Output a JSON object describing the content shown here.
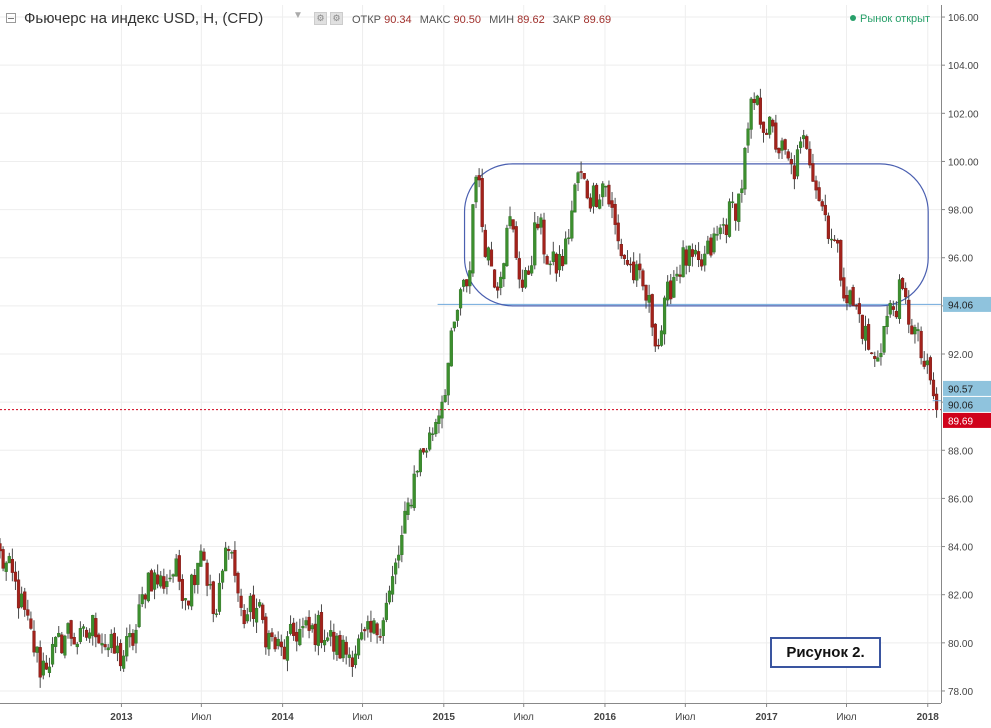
{
  "header": {
    "title": "Фьючерс на индекс USD, Н, (CFD)",
    "open_label": "ОТКР",
    "open_value": "90.34",
    "high_label": "МАКС",
    "high_value": "90.50",
    "low_label": "МИН",
    "low_value": "89.62",
    "close_label": "ЗАКР",
    "close_value": "89.69",
    "market_status": "Рынок открыт"
  },
  "figure_label": "Рисунок 2.",
  "colors": {
    "up": "#3c8f2e",
    "down": "#a3221b",
    "wick": "#4a4a4a",
    "grid": "#eeeeee",
    "channel": "#4a5fb0",
    "level_line": "#6fa8dc",
    "price_line": "#d0021b",
    "badge_blue": "#8fc3dd",
    "badge_red": "#d0021b",
    "market": "#28a06a"
  },
  "chart_data": {
    "type": "candlestick",
    "title": "Фьючерс на индекс USD, Н, (CFD)",
    "y_range": [
      77.5,
      106.5
    ],
    "y_ticks": [
      "78.00",
      "80.00",
      "82.00",
      "84.00",
      "86.00",
      "88.00",
      "90.00",
      "92.00",
      "94.00",
      "96.00",
      "98.00",
      "100.00",
      "102.00",
      "104.00",
      "106.00"
    ],
    "x_range": [
      "2012-04-01",
      "2018-01-31"
    ],
    "x_ticks": [
      {
        "date": "2013-01-01",
        "label": "2013"
      },
      {
        "date": "2013-07-01",
        "label": "Июл"
      },
      {
        "date": "2014-01-01",
        "label": "2014"
      },
      {
        "date": "2014-07-01",
        "label": "Июл"
      },
      {
        "date": "2015-01-01",
        "label": "2015"
      },
      {
        "date": "2015-07-01",
        "label": "Июл"
      },
      {
        "date": "2016-01-01",
        "label": "2016"
      },
      {
        "date": "2016-07-01",
        "label": "Июл"
      },
      {
        "date": "2017-01-01",
        "label": "2017"
      },
      {
        "date": "2017-07-01",
        "label": "Июл"
      },
      {
        "date": "2018-01-01",
        "label": "2018"
      }
    ],
    "path": [
      [
        "2012-04-01",
        83.6
      ],
      [
        "2012-05-01",
        82.6
      ],
      [
        "2012-06-01",
        80.8
      ],
      [
        "2012-07-01",
        79.0
      ],
      [
        "2012-08-01",
        79.6
      ],
      [
        "2012-09-01",
        80.5
      ],
      [
        "2012-10-01",
        80.0
      ],
      [
        "2012-11-01",
        80.8
      ],
      [
        "2012-12-01",
        79.8
      ],
      [
        "2013-01-01",
        79.4
      ],
      [
        "2013-02-01",
        80.3
      ],
      [
        "2013-03-01",
        82.8
      ],
      [
        "2013-04-01",
        82.5
      ],
      [
        "2013-05-01",
        83.0
      ],
      [
        "2013-06-01",
        82.0
      ],
      [
        "2013-07-01",
        84.2
      ],
      [
        "2013-08-01",
        80.8
      ],
      [
        "2013-09-01",
        84.5
      ],
      [
        "2013-10-01",
        81.0
      ],
      [
        "2013-11-01",
        81.5
      ],
      [
        "2013-12-01",
        80.2
      ],
      [
        "2014-01-01",
        79.5
      ],
      [
        "2014-02-01",
        80.5
      ],
      [
        "2014-03-01",
        80.4
      ],
      [
        "2014-04-01",
        80.6
      ],
      [
        "2014-05-01",
        79.8
      ],
      [
        "2014-06-01",
        79.6
      ],
      [
        "2014-07-01",
        80.0
      ],
      [
        "2014-08-01",
        80.5
      ],
      [
        "2014-09-01",
        82.0
      ],
      [
        "2014-10-01",
        84.5
      ],
      [
        "2014-11-01",
        87.5
      ],
      [
        "2014-12-01",
        88.5
      ],
      [
        "2015-01-01",
        90.5
      ],
      [
        "2015-02-01",
        93.8
      ],
      [
        "2015-03-01",
        95.5
      ],
      [
        "2015-03-13",
        100.2
      ],
      [
        "2015-04-01",
        97.0
      ],
      [
        "2015-05-01",
        95.0
      ],
      [
        "2015-06-01",
        97.5
      ],
      [
        "2015-07-01",
        94.5
      ],
      [
        "2015-08-01",
        97.5
      ],
      [
        "2015-09-01",
        95.5
      ],
      [
        "2015-10-01",
        96.0
      ],
      [
        "2015-11-01",
        99.5
      ],
      [
        "2015-12-01",
        98.5
      ],
      [
        "2016-01-01",
        99.2
      ],
      [
        "2016-02-01",
        96.5
      ],
      [
        "2016-03-01",
        95.5
      ],
      [
        "2016-04-01",
        94.5
      ],
      [
        "2016-05-01",
        92.5
      ],
      [
        "2016-06-01",
        95.2
      ],
      [
        "2016-07-01",
        96.0
      ],
      [
        "2016-08-01",
        95.5
      ],
      [
        "2016-09-01",
        96.5
      ],
      [
        "2016-10-01",
        97.5
      ],
      [
        "2016-11-01",
        98.5
      ],
      [
        "2016-12-01",
        102.5
      ],
      [
        "2017-01-01",
        101.5
      ],
      [
        "2017-02-01",
        100.5
      ],
      [
        "2017-03-01",
        99.5
      ],
      [
        "2017-04-01",
        101.0
      ],
      [
        "2017-05-01",
        98.5
      ],
      [
        "2017-06-01",
        96.8
      ],
      [
        "2017-07-01",
        94.5
      ],
      [
        "2017-08-01",
        93.5
      ],
      [
        "2017-09-01",
        91.5
      ],
      [
        "2017-10-01",
        93.5
      ],
      [
        "2017-11-01",
        94.5
      ],
      [
        "2017-12-01",
        93.0
      ],
      [
        "2018-01-01",
        91.0
      ],
      [
        "2018-01-25",
        89.69
      ]
    ],
    "annotations": {
      "channel": {
        "from": "2015-02-17",
        "to": "2018-01-02",
        "top": 99.9,
        "bottom": 94.0
      },
      "support_line": {
        "from": "2014-12-18",
        "value": 94.06
      },
      "badges": [
        {
          "value": 94.06,
          "label": "94.06",
          "style": "blue"
        },
        {
          "value": 90.57,
          "label": "90.57",
          "style": "blue"
        },
        {
          "value": 90.06,
          "label": "90.06",
          "style": "blue"
        },
        {
          "value": 89.69,
          "label": "89.69",
          "style": "red"
        }
      ],
      "current_price": 89.69
    }
  }
}
